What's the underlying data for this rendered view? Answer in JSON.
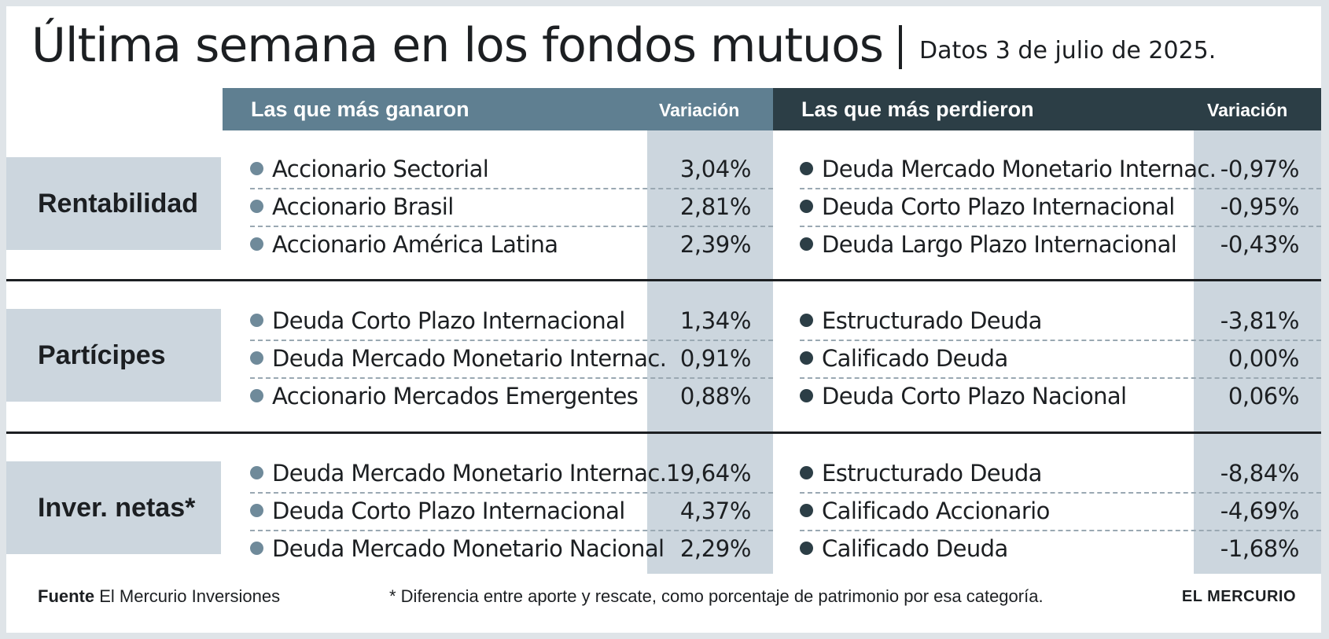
{
  "title": "Última semana en los fondos mutuos",
  "date": "Datos 3 de julio de 2025.",
  "headers": {
    "gainers": "Las que más ganaron",
    "losers": "Las que más perdieron",
    "variation_left": "Variación",
    "variation_right": "Variación"
  },
  "sections": [
    {
      "category": "Rentabilidad",
      "gainers": [
        {
          "name": "Accionario Sectorial",
          "value": "3,04%"
        },
        {
          "name": "Accionario Brasil",
          "value": "2,81%"
        },
        {
          "name": "Accionario América Latina",
          "value": "2,39%"
        }
      ],
      "losers": [
        {
          "name": "Deuda Mercado Monetario Internac.",
          "value": "-0,97%"
        },
        {
          "name": "Deuda Corto Plazo Internacional",
          "value": "-0,95%"
        },
        {
          "name": "Deuda Largo Plazo Internacional",
          "value": "-0,43%"
        }
      ]
    },
    {
      "category": "Partícipes",
      "gainers": [
        {
          "name": "Deuda Corto Plazo Internacional",
          "value": "1,34%"
        },
        {
          "name": "Deuda Mercado Monetario Internac.",
          "value": "0,91%"
        },
        {
          "name": "Accionario Mercados Emergentes",
          "value": "0,88%"
        }
      ],
      "losers": [
        {
          "name": "Estructurado Deuda",
          "value": "-3,81%"
        },
        {
          "name": "Calificado Deuda",
          "value": "0,00%"
        },
        {
          "name": "Deuda Corto Plazo Nacional",
          "value": "0,06%"
        }
      ]
    },
    {
      "category": "Inver. netas*",
      "gainers": [
        {
          "name": "Deuda Mercado Monetario Internac.",
          "value": "19,64%"
        },
        {
          "name": "Deuda Corto Plazo Internacional",
          "value": "4,37%"
        },
        {
          "name": "Deuda Mercado Monetario Nacional",
          "value": "2,29%"
        }
      ],
      "losers": [
        {
          "name": "Estructurado Deuda",
          "value": "-8,84%"
        },
        {
          "name": "Calificado Accionario",
          "value": "-4,69%"
        },
        {
          "name": "Calificado Deuda",
          "value": "-1,68%"
        }
      ]
    }
  ],
  "footer": {
    "source_label": "Fuente",
    "source_text": " El Mercurio Inversiones",
    "note": "* Diferencia entre aporte y rescate, como porcentaje de patrimonio por esa categoría.",
    "brand": "EL MERCURIO"
  },
  "colors": {
    "gainers_header": "#5f7f91",
    "losers_header": "#2c3e46",
    "band": "#ccd6de"
  }
}
